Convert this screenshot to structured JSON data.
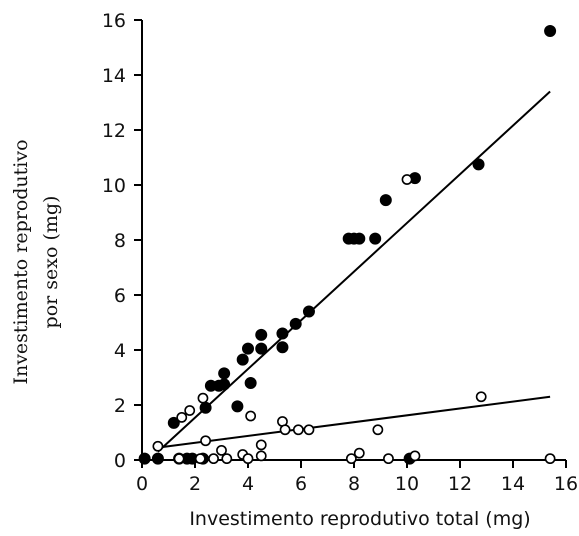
{
  "chart_data": {
    "type": "scatter",
    "title": "",
    "xlabel": "Investimento reprodutivo total (mg)",
    "ylabel_lines": [
      "Investimento reprodutivo",
      "por sexo (mg)"
    ],
    "xlim": [
      0,
      16
    ],
    "ylim": [
      0,
      16
    ],
    "xticks": [
      "0",
      "2",
      "4",
      "6",
      "8",
      "10",
      "12",
      "14",
      "16"
    ],
    "yticks": [
      "0",
      "2",
      "4",
      "6",
      "8",
      "10",
      "12",
      "14",
      "16"
    ],
    "grid": false,
    "legend": "none",
    "series": [
      {
        "marker": "filled-circle",
        "color": "#000000",
        "points": [
          [
            0.1,
            0.05
          ],
          [
            0.6,
            0.05
          ],
          [
            1.2,
            1.35
          ],
          [
            1.4,
            0.05
          ],
          [
            1.7,
            0.05
          ],
          [
            1.9,
            0.05
          ],
          [
            2.3,
            0.05
          ],
          [
            2.4,
            1.9
          ],
          [
            2.6,
            2.7
          ],
          [
            2.9,
            2.7
          ],
          [
            3.1,
            3.15
          ],
          [
            3.1,
            2.75
          ],
          [
            3.6,
            1.95
          ],
          [
            3.8,
            3.65
          ],
          [
            4.0,
            4.05
          ],
          [
            4.1,
            2.8
          ],
          [
            4.5,
            4.55
          ],
          [
            4.5,
            4.05
          ],
          [
            5.3,
            4.6
          ],
          [
            5.3,
            4.1
          ],
          [
            5.8,
            4.95
          ],
          [
            6.3,
            5.4
          ],
          [
            7.8,
            8.05
          ],
          [
            8.0,
            8.05
          ],
          [
            8.2,
            8.05
          ],
          [
            8.8,
            8.05
          ],
          [
            9.2,
            9.45
          ],
          [
            10.1,
            0.05
          ],
          [
            10.3,
            10.25
          ],
          [
            12.7,
            10.75
          ],
          [
            15.4,
            15.6
          ]
        ]
      },
      {
        "marker": "open-circle",
        "color": "#000000",
        "points": [
          [
            0.6,
            0.5
          ],
          [
            1.4,
            0.05
          ],
          [
            1.5,
            1.55
          ],
          [
            1.8,
            1.8
          ],
          [
            2.2,
            0.05
          ],
          [
            2.3,
            2.25
          ],
          [
            2.4,
            0.7
          ],
          [
            2.7,
            0.05
          ],
          [
            3.0,
            0.35
          ],
          [
            3.2,
            0.05
          ],
          [
            3.8,
            0.2
          ],
          [
            4.0,
            0.05
          ],
          [
            4.1,
            1.6
          ],
          [
            4.5,
            0.55
          ],
          [
            4.5,
            0.15
          ],
          [
            5.3,
            1.4
          ],
          [
            5.4,
            1.1
          ],
          [
            5.9,
            1.1
          ],
          [
            6.3,
            1.1
          ],
          [
            7.9,
            0.05
          ],
          [
            8.2,
            0.25
          ],
          [
            8.9,
            1.1
          ],
          [
            9.3,
            0.05
          ],
          [
            10.0,
            10.2
          ],
          [
            10.3,
            0.15
          ],
          [
            12.8,
            2.3
          ],
          [
            15.4,
            0.05
          ]
        ]
      }
    ],
    "fit_lines": [
      {
        "x": [
          0.6,
          15.4
        ],
        "y": [
          0.3,
          13.4
        ]
      },
      {
        "x": [
          0.6,
          15.4
        ],
        "y": [
          0.45,
          2.3
        ]
      },
      {
        "x": [
          0.0,
          15.4
        ],
        "y": [
          0.0,
          0.0
        ]
      }
    ]
  }
}
